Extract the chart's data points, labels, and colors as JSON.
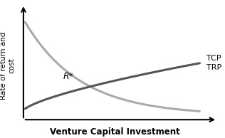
{
  "title": "",
  "xlabel": "Venture Capital Investment",
  "ylabel": "Rate of return and\ncost",
  "tcp_color": "#aaaaaa",
  "trp_color": "#555555",
  "tcp_label": "TCP",
  "trp_label": "TRP",
  "rstar_label": "R*",
  "background_color": "#ffffff",
  "x_range": [
    0.0,
    1.0
  ],
  "figsize": [
    3.16,
    1.94
  ],
  "dpi": 100
}
